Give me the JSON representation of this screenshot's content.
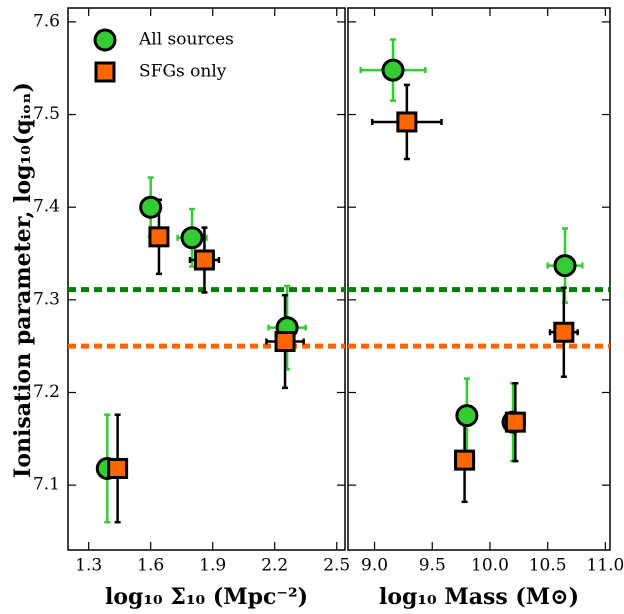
{
  "chart_data": [
    {
      "type": "scatter",
      "ylabel": "Ionisation parameter, log₁₀(qᵢₒₙ)",
      "xlabel": "log₁₀ Σ₁₀ (Mpc⁻²)",
      "xlim": [
        1.2,
        2.54
      ],
      "ylim": [
        7.03,
        7.615
      ],
      "xticks": [
        1.3,
        1.6,
        1.9,
        2.2,
        2.5
      ],
      "yticks": [
        7.1,
        7.2,
        7.3,
        7.4,
        7.5,
        7.6
      ],
      "legend": "upper left",
      "hlines": [
        {
          "value": 7.311,
          "color": "#008000"
        },
        {
          "value": 7.25,
          "color": "#ff6600"
        }
      ],
      "series": [
        {
          "name": "All sources",
          "marker": "circle",
          "color": "#33cc33",
          "ecolor": "#33cc33",
          "x": [
            1.39,
            1.6,
            1.8,
            2.26
          ],
          "y": [
            7.118,
            7.4,
            7.367,
            7.27
          ],
          "xerr": [
            0.02,
            0.02,
            0.07,
            0.09
          ],
          "yerr": [
            0.058,
            0.032,
            0.031,
            0.045
          ]
        },
        {
          "name": "SFGs only",
          "marker": "square",
          "color": "#ff6600",
          "ecolor": "#000000",
          "x": [
            1.44,
            1.64,
            1.86,
            2.25
          ],
          "y": [
            7.118,
            7.368,
            7.343,
            7.255
          ],
          "xerr": [
            0.04,
            0.03,
            0.07,
            0.09
          ],
          "yerr": [
            0.058,
            0.04,
            0.035,
            0.05
          ]
        }
      ]
    },
    {
      "type": "scatter",
      "xlabel": "log₁₀ Mass (M⊙)",
      "xlim": [
        8.77,
        11.04
      ],
      "ylim": [
        7.03,
        7.615
      ],
      "xticks": [
        {
          "value": 9,
          "label": "9.0"
        },
        9.5,
        {
          "value": 10,
          "label": "10.0"
        },
        10.5,
        {
          "value": 11,
          "label": "11.0"
        }
      ],
      "hlines": [
        {
          "value": 7.311,
          "color": "#008000"
        },
        {
          "value": 7.25,
          "color": "#ff6600"
        }
      ],
      "series": [
        {
          "marker": "circle",
          "color": "#33cc33",
          "ecolor": "#33cc33",
          "x": [
            9.16,
            9.8,
            10.2,
            10.65
          ],
          "y": [
            7.548,
            7.175,
            7.168,
            7.337
          ],
          "xerr": [
            0.28,
            0.03,
            0.03,
            0.15
          ],
          "yerr": [
            0.033,
            0.04,
            0.042,
            0.04
          ]
        },
        {
          "marker": "square",
          "color": "#ff6600",
          "ecolor": "#000000",
          "x": [
            9.28,
            9.78,
            10.22,
            10.64
          ],
          "y": [
            7.492,
            7.127,
            7.168,
            7.265
          ],
          "xerr": [
            0.3,
            0.08,
            0.08,
            0.12
          ],
          "yerr": [
            0.04,
            0.045,
            0.042,
            0.048
          ]
        }
      ]
    }
  ]
}
